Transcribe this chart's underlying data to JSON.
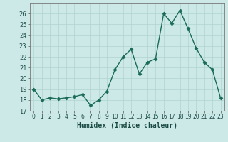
{
  "x": [
    0,
    1,
    2,
    3,
    4,
    5,
    6,
    7,
    8,
    9,
    10,
    11,
    12,
    13,
    14,
    15,
    16,
    17,
    18,
    19,
    20,
    21,
    22,
    23
  ],
  "y": [
    19,
    18,
    18.2,
    18.1,
    18.2,
    18.3,
    18.5,
    17.5,
    18.0,
    18.8,
    20.8,
    22.0,
    22.7,
    20.4,
    21.5,
    21.8,
    26.0,
    25.1,
    26.3,
    24.6,
    22.8,
    21.5,
    20.8,
    18.2
  ],
  "xlabel": "Humidex (Indice chaleur)",
  "xlim": [
    -0.5,
    23.5
  ],
  "ylim": [
    17,
    27
  ],
  "yticks": [
    17,
    18,
    19,
    20,
    21,
    22,
    23,
    24,
    25,
    26
  ],
  "xtick_labels": [
    "0",
    "1",
    "2",
    "3",
    "4",
    "5",
    "6",
    "7",
    "8",
    "9",
    "10",
    "11",
    "12",
    "13",
    "14",
    "15",
    "16",
    "17",
    "18",
    "19",
    "20",
    "21",
    "22",
    "23"
  ],
  "line_color": "#1a6b5a",
  "bg_color": "#cce9e7",
  "grid_color": "#b0d4d0",
  "marker": "D",
  "marker_size": 2.5,
  "line_width": 1.0
}
